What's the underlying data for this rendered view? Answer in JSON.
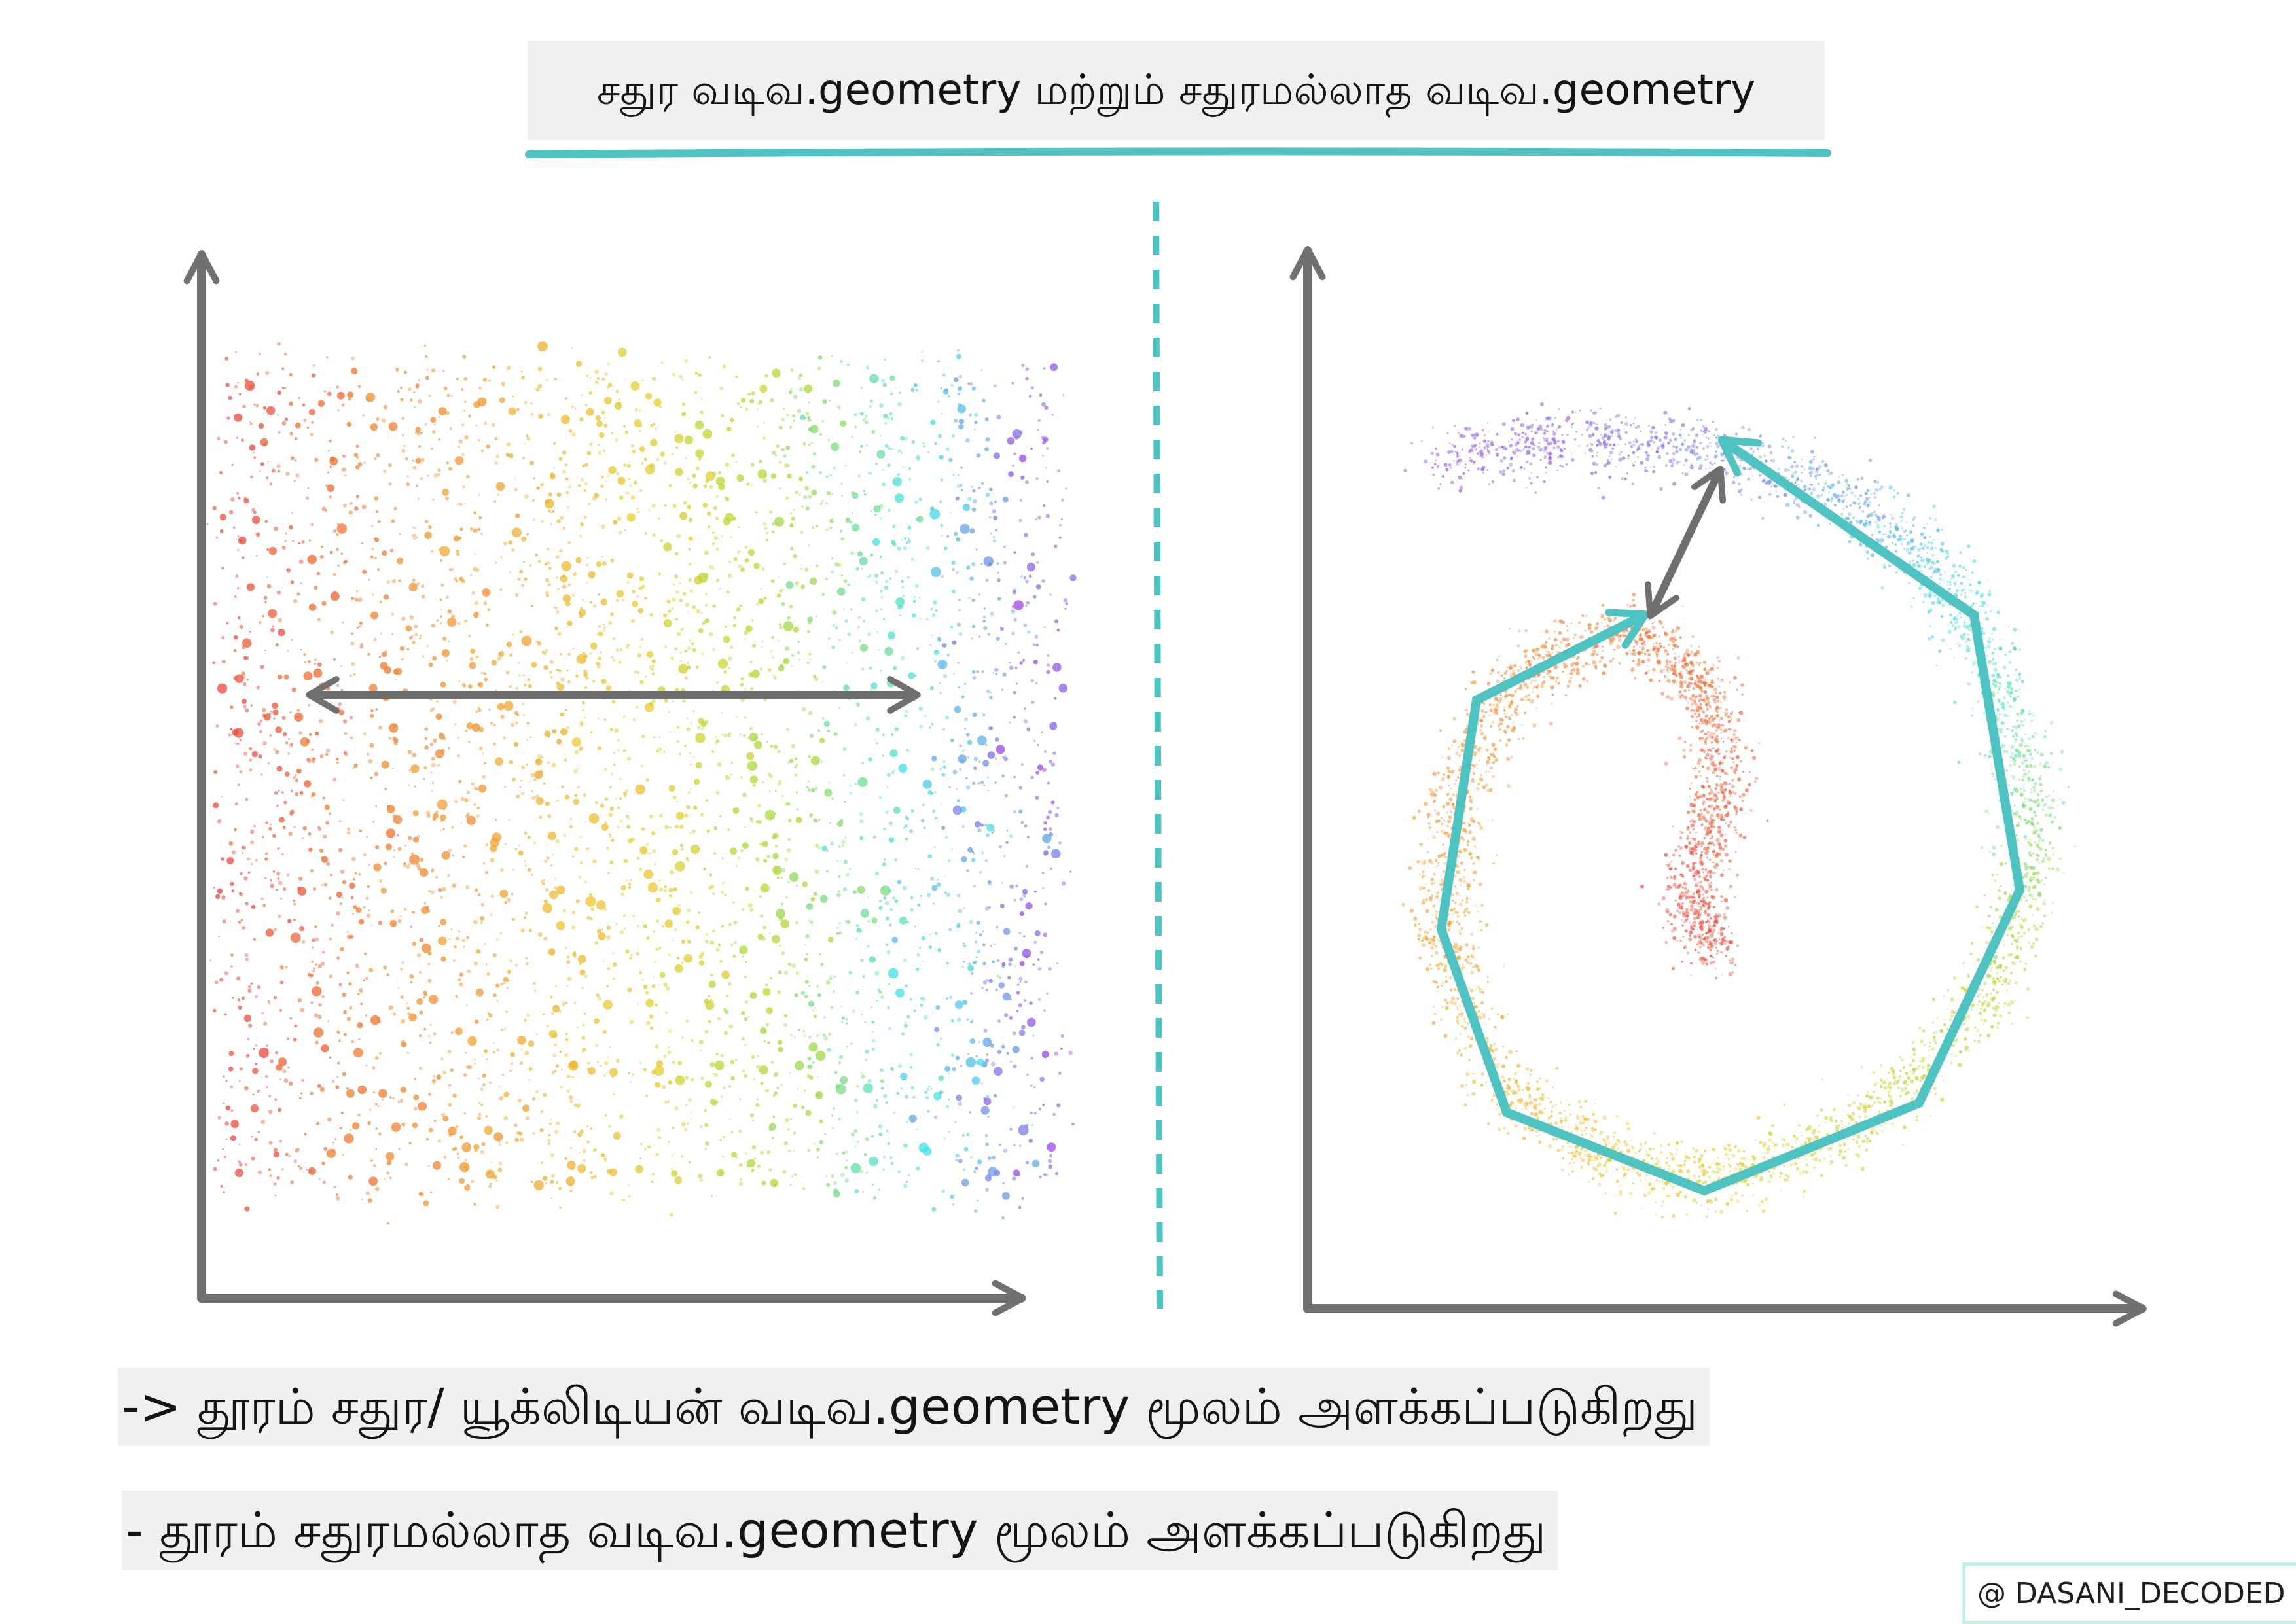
{
  "title": "சதுர வடிவ.geometry மற்றும் சதுரமல்லாத வடிவ.geometry",
  "captions": {
    "first": "-> தூரம் சதுர/ யூக்லிடியன் வடிவ.geometry மூலம் அளக்கப்படுகிறது",
    "second": "- தூரம் சதுரமல்லாத வடிவ.geometry மூலம் அளக்கப்படுகிறது"
  },
  "credit": "@ DASANI_DECODED",
  "colors": {
    "accent": "#4fc3c1",
    "axis": "#707070",
    "rainbow": [
      "#e8453c",
      "#ef7a2e",
      "#f0a531",
      "#e9cc2e",
      "#a8d936",
      "#3fe0e8",
      "#9a48e3"
    ]
  },
  "panels": {
    "left": {
      "description_icon": "flat-rainbow-point-cloud",
      "arrow_icon": "double-headed-arrow-icon"
    },
    "right": {
      "description_icon": "spiral-rainbow-point-cloud",
      "path_icon": "geodesic-path-icon",
      "arrow_icon": "double-headed-arrow-icon"
    }
  }
}
